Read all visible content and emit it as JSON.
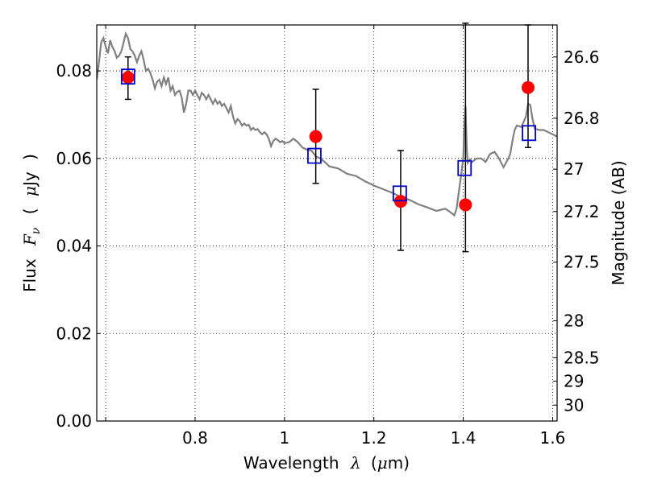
{
  "chart_data": {
    "type": "scatter",
    "xlabel": {
      "prefix": "Wavelength",
      "symbol": "λ",
      "unit_open": "(",
      "unit_mu": "μ",
      "unit_rest": "m)"
    },
    "ylabel": {
      "prefix": "Flux",
      "symbol_main": "F",
      "symbol_sub": "ν",
      "unit_open": "(",
      "unit_mu": "μ",
      "unit_rest": "Jy",
      "unit_close": ")"
    },
    "y2label": "Magnitude (AB)",
    "xlim": [
      0.58,
      1.61
    ],
    "ylim": [
      0.0,
      0.0905
    ],
    "grid": true,
    "x_ticks": [
      {
        "value": 0.6,
        "label": ""
      },
      {
        "value": 0.8,
        "label": "0.8"
      },
      {
        "value": 1.0,
        "label": "1"
      },
      {
        "value": 1.2,
        "label": "1.2"
      },
      {
        "value": 1.4,
        "label": "1.4"
      },
      {
        "value": 1.6,
        "label": "1.6"
      }
    ],
    "y_ticks": [
      {
        "value": 0.0,
        "label": "0.00"
      },
      {
        "value": 0.02,
        "label": "0.02"
      },
      {
        "value": 0.04,
        "label": "0.04"
      },
      {
        "value": 0.06,
        "label": "0.06"
      },
      {
        "value": 0.08,
        "label": "0.08"
      }
    ],
    "y2_ticks": [
      {
        "value": 26.6,
        "label": "26.6"
      },
      {
        "value": 26.8,
        "label": "26.8"
      },
      {
        "value": 27.0,
        "label": "27"
      },
      {
        "value": 27.2,
        "label": "27.2"
      },
      {
        "value": 27.5,
        "label": "27.5"
      },
      {
        "value": 28.0,
        "label": "28"
      },
      {
        "value": 28.5,
        "label": "28.5"
      },
      {
        "value": 29.0,
        "label": "29"
      },
      {
        "value": 30.0,
        "label": "30"
      }
    ],
    "series": [
      {
        "kind": "line",
        "color": "#808080",
        "x": [
          0.58,
          0.585,
          0.59,
          0.595,
          0.6,
          0.605,
          0.61,
          0.615,
          0.62,
          0.625,
          0.63,
          0.635,
          0.64,
          0.645,
          0.65,
          0.655,
          0.66,
          0.665,
          0.67,
          0.675,
          0.68,
          0.685,
          0.69,
          0.695,
          0.7,
          0.705,
          0.71,
          0.715,
          0.72,
          0.725,
          0.73,
          0.735,
          0.74,
          0.745,
          0.75,
          0.755,
          0.76,
          0.765,
          0.77,
          0.775,
          0.78,
          0.785,
          0.79,
          0.795,
          0.8,
          0.805,
          0.81,
          0.815,
          0.82,
          0.825,
          0.83,
          0.835,
          0.84,
          0.845,
          0.85,
          0.855,
          0.86,
          0.865,
          0.87,
          0.875,
          0.88,
          0.885,
          0.89,
          0.895,
          0.9,
          0.905,
          0.91,
          0.915,
          0.92,
          0.925,
          0.93,
          0.935,
          0.94,
          0.945,
          0.95,
          0.955,
          0.96,
          0.965,
          0.97,
          0.975,
          0.98,
          0.985,
          0.99,
          0.995,
          1.0,
          1.01,
          1.02,
          1.03,
          1.04,
          1.05,
          1.06,
          1.07,
          1.08,
          1.09,
          1.1,
          1.12,
          1.14,
          1.16,
          1.18,
          1.2,
          1.22,
          1.24,
          1.26,
          1.28,
          1.3,
          1.32,
          1.34,
          1.36,
          1.37,
          1.38,
          1.385,
          1.39,
          1.395,
          1.4,
          1.402,
          1.405,
          1.408,
          1.41,
          1.415,
          1.42,
          1.43,
          1.44,
          1.45,
          1.46,
          1.47,
          1.48,
          1.49,
          1.5,
          1.505,
          1.51,
          1.515,
          1.52,
          1.53,
          1.54,
          1.545,
          1.55,
          1.555,
          1.56,
          1.57,
          1.58,
          1.59,
          1.6,
          1.61
        ],
        "y": [
          0.078,
          0.082,
          0.0865,
          0.0875,
          0.0855,
          0.084,
          0.087,
          0.0855,
          0.0845,
          0.083,
          0.0835,
          0.0845,
          0.0865,
          0.0885,
          0.0875,
          0.085,
          0.0845,
          0.0835,
          0.082,
          0.0835,
          0.0845,
          0.0825,
          0.08,
          0.0805,
          0.0795,
          0.078,
          0.076,
          0.0775,
          0.078,
          0.0765,
          0.0785,
          0.077,
          0.0785,
          0.0755,
          0.0765,
          0.0745,
          0.0752,
          0.0755,
          0.074,
          0.0705,
          0.0725,
          0.0755,
          0.0755,
          0.0745,
          0.0755,
          0.0745,
          0.0735,
          0.075,
          0.0745,
          0.0735,
          0.0745,
          0.0735,
          0.0725,
          0.0735,
          0.0725,
          0.073,
          0.072,
          0.0725,
          0.0715,
          0.0705,
          0.072,
          0.0695,
          0.068,
          0.069,
          0.0685,
          0.0675,
          0.068,
          0.0675,
          0.0677,
          0.0665,
          0.067,
          0.0665,
          0.0667,
          0.066,
          0.0655,
          0.066,
          0.0655,
          0.0645,
          0.0628,
          0.064,
          0.0645,
          0.0642,
          0.0637,
          0.064,
          0.0635,
          0.0637,
          0.0645,
          0.0637,
          0.0625,
          0.062,
          0.0618,
          0.0605,
          0.06,
          0.0592,
          0.0582,
          0.0577,
          0.0565,
          0.056,
          0.0548,
          0.0538,
          0.053,
          0.0522,
          0.0512,
          0.0505,
          0.0495,
          0.0488,
          0.048,
          0.0485,
          0.0478,
          0.047,
          0.0485,
          0.0522,
          0.056,
          0.06,
          0.067,
          0.072,
          0.062,
          0.059,
          0.0598,
          0.0592,
          0.06,
          0.06,
          0.0592,
          0.061,
          0.0615,
          0.06,
          0.058,
          0.0598,
          0.061,
          0.064,
          0.0665,
          0.0675,
          0.0672,
          0.0695,
          0.0725,
          0.0722,
          0.069,
          0.0668,
          0.0665,
          0.0665,
          0.066,
          0.0655,
          0.065
        ]
      },
      {
        "kind": "errorbar",
        "color": "#000000",
        "x": [
          0.65,
          1.07,
          1.26,
          1.405,
          1.545
        ],
        "lower": [
          0.0735,
          0.0543,
          0.039,
          0.0387,
          0.0625
        ],
        "upper": [
          0.0832,
          0.0758,
          0.0618,
          0.0909,
          0.0905
        ]
      },
      {
        "kind": "markers",
        "marker": "circle",
        "color": "#ff0000",
        "x": [
          0.65,
          1.07,
          1.26,
          1.405,
          1.545
        ],
        "y": [
          0.0785,
          0.065,
          0.0502,
          0.0494,
          0.0762
        ]
      },
      {
        "kind": "markers",
        "marker": "square-open",
        "color": "#0000cc",
        "x": [
          0.65,
          1.067,
          1.258,
          1.403,
          1.547
        ],
        "y": [
          0.0787,
          0.0606,
          0.052,
          0.0578,
          0.0658
        ]
      }
    ]
  }
}
